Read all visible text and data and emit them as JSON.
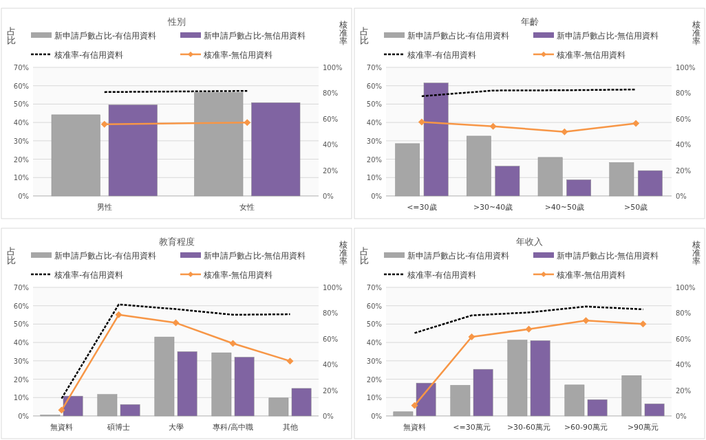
{
  "chart_data": [
    {
      "type": "bar",
      "title": "性別",
      "ylabel": "占比",
      "y2label": "核准率",
      "categories": [
        "男性",
        "女性"
      ],
      "legend": "top",
      "grid": "y",
      "ylim": [
        0,
        70
      ],
      "yticks": [
        {
          "value": 0,
          "label": "0%"
        },
        {
          "value": 10,
          "label": "10%"
        },
        {
          "value": 20,
          "label": "20%"
        },
        {
          "value": 30,
          "label": "30%"
        },
        {
          "value": 40,
          "label": "40%"
        },
        {
          "value": 50,
          "label": "50%"
        },
        {
          "value": 60,
          "label": "60%"
        },
        {
          "value": 70,
          "label": "70%"
        }
      ],
      "y2lim": [
        0,
        100
      ],
      "y2ticks": [
        {
          "value": 0,
          "label": "0%"
        },
        {
          "value": 20,
          "label": "20%"
        },
        {
          "value": 40,
          "label": "40%"
        },
        {
          "value": 60,
          "label": "60%"
        },
        {
          "value": 80,
          "label": "80%"
        },
        {
          "value": 100,
          "label": "100%"
        }
      ],
      "series": [
        {
          "name": "新申請戶數占比-有信用資料",
          "type": "bar",
          "color": "#a6a6a6",
          "values": [
            44.2,
            56.3
          ]
        },
        {
          "name": "新申請戶數占比-無信用資料",
          "type": "bar",
          "color": "#8064a2",
          "values": [
            49.6,
            50.8
          ]
        },
        {
          "name": "核准率-有信用資料",
          "type": "line",
          "axis": "y2",
          "line_style": "dashed",
          "marker": "none",
          "color": "#000000",
          "values": [
            80.8,
            81.7
          ]
        },
        {
          "name": "核准率-無信用資料",
          "type": "line",
          "axis": "y2",
          "line_style": "solid",
          "marker": "diamond",
          "color": "#f79646",
          "values": [
            55.7,
            57.1
          ]
        }
      ]
    },
    {
      "type": "bar",
      "title": "年齡",
      "ylabel": "占比",
      "y2label": "核准率",
      "categories": [
        "<=30歲",
        ">30~40歲",
        ">40~50歲",
        ">50歲"
      ],
      "legend": "top",
      "grid": "y",
      "ylim": [
        0,
        70
      ],
      "yticks": [
        {
          "value": 0,
          "label": "0%"
        },
        {
          "value": 10,
          "label": "10%"
        },
        {
          "value": 20,
          "label": "20%"
        },
        {
          "value": 30,
          "label": "30%"
        },
        {
          "value": 40,
          "label": "40%"
        },
        {
          "value": 50,
          "label": "50%"
        },
        {
          "value": 60,
          "label": "60%"
        },
        {
          "value": 70,
          "label": "70%"
        }
      ],
      "y2lim": [
        0,
        100
      ],
      "y2ticks": [
        {
          "value": 0,
          "label": "0%"
        },
        {
          "value": 20,
          "label": "20%"
        },
        {
          "value": 40,
          "label": "40%"
        },
        {
          "value": 60,
          "label": "60%"
        },
        {
          "value": 80,
          "label": "80%"
        },
        {
          "value": 100,
          "label": "100%"
        }
      ],
      "series": [
        {
          "name": "新申請戶數占比-有信用資料",
          "type": "bar",
          "color": "#a6a6a6",
          "values": [
            28.5,
            32.6,
            21,
            18.2
          ]
        },
        {
          "name": "新申請戶數占比-無信用資料",
          "type": "bar",
          "color": "#8064a2",
          "values": [
            61.5,
            16.2,
            8.8,
            13.8
          ]
        },
        {
          "name": "核准率-有信用資料",
          "type": "line",
          "axis": "y2",
          "line_style": "dashed",
          "marker": "none",
          "color": "#000000",
          "values": [
            77.6,
            82,
            82.2,
            82.8
          ]
        },
        {
          "name": "核准率-無信用資料",
          "type": "line",
          "axis": "y2",
          "line_style": "solid",
          "marker": "diamond",
          "color": "#f79646",
          "values": [
            57.5,
            54.2,
            49.9,
            56.4
          ]
        }
      ]
    },
    {
      "type": "bar",
      "title": "教育程度",
      "ylabel": "占比",
      "y2label": "核准率",
      "categories": [
        "無資料",
        "碩博士",
        "大學",
        "專科/高中職",
        "其他"
      ],
      "legend": "top",
      "grid": "y",
      "ylim": [
        0,
        70
      ],
      "yticks": [
        {
          "value": 0,
          "label": "0%"
        },
        {
          "value": 10,
          "label": "10%"
        },
        {
          "value": 20,
          "label": "20%"
        },
        {
          "value": 30,
          "label": "30%"
        },
        {
          "value": 40,
          "label": "40%"
        },
        {
          "value": 50,
          "label": "50%"
        },
        {
          "value": 60,
          "label": "60%"
        },
        {
          "value": 70,
          "label": "70%"
        }
      ],
      "y2lim": [
        0,
        100
      ],
      "y2ticks": [
        {
          "value": 0,
          "label": "0%"
        },
        {
          "value": 20,
          "label": "20%"
        },
        {
          "value": 40,
          "label": "40%"
        },
        {
          "value": 60,
          "label": "60%"
        },
        {
          "value": 80,
          "label": "80%"
        },
        {
          "value": 100,
          "label": "100%"
        }
      ],
      "series": [
        {
          "name": "新申請戶數占比-有信用資料",
          "type": "bar",
          "color": "#a6a6a6",
          "values": [
            0.5,
            11.7,
            43,
            34.4,
            9.8
          ]
        },
        {
          "name": "新申請戶數占比-無信用資料",
          "type": "bar",
          "color": "#8064a2",
          "values": [
            10.8,
            6.2,
            35,
            32,
            15
          ]
        },
        {
          "name": "核准率-有信用資料",
          "type": "line",
          "axis": "y2",
          "line_style": "dashed",
          "marker": "none",
          "color": "#000000",
          "values": [
            13.6,
            86.7,
            83.1,
            78.7,
            79.1
          ]
        },
        {
          "name": "核准率-無信用資料",
          "type": "line",
          "axis": "y2",
          "line_style": "solid",
          "marker": "diamond",
          "color": "#f79646",
          "values": [
            4.5,
            78.7,
            72.4,
            56.4,
            42.7
          ]
        }
      ]
    },
    {
      "type": "bar",
      "title": "年收入",
      "ylabel": "占比",
      "y2label": "核准率",
      "categories": [
        "無資料",
        "<=30萬元",
        ">30-60萬元",
        ">60-90萬元",
        ">90萬元"
      ],
      "legend": "top",
      "grid": "y",
      "ylim": [
        0,
        70
      ],
      "yticks": [
        {
          "value": 0,
          "label": "0%"
        },
        {
          "value": 10,
          "label": "10%"
        },
        {
          "value": 20,
          "label": "20%"
        },
        {
          "value": 30,
          "label": "30%"
        },
        {
          "value": 40,
          "label": "40%"
        },
        {
          "value": 50,
          "label": "50%"
        },
        {
          "value": 60,
          "label": "60%"
        },
        {
          "value": 70,
          "label": "70%"
        }
      ],
      "y2lim": [
        0,
        100
      ],
      "y2ticks": [
        {
          "value": 0,
          "label": "0%"
        },
        {
          "value": 20,
          "label": "20%"
        },
        {
          "value": 40,
          "label": "40%"
        },
        {
          "value": 60,
          "label": "60%"
        },
        {
          "value": 80,
          "label": "80%"
        },
        {
          "value": 100,
          "label": "100%"
        }
      ],
      "series": [
        {
          "name": "新申請戶數占比-有信用資料",
          "type": "bar",
          "color": "#a6a6a6",
          "values": [
            2.3,
            16.7,
            41.3,
            16.9,
            22
          ]
        },
        {
          "name": "新申請戶數占比-無信用資料",
          "type": "bar",
          "color": "#8064a2",
          "values": [
            17.9,
            25.4,
            41,
            8.9,
            6.6
          ]
        },
        {
          "name": "核准率-有信用資料",
          "type": "line",
          "axis": "y2",
          "line_style": "dashed",
          "marker": "none",
          "color": "#000000",
          "values": [
            64.5,
            78.2,
            80.5,
            85.1,
            82.9
          ]
        },
        {
          "name": "核准率-無信用資料",
          "type": "line",
          "axis": "y2",
          "line_style": "solid",
          "marker": "diamond",
          "color": "#f79646",
          "values": [
            8.2,
            61.5,
            67.5,
            74.2,
            71.5
          ]
        }
      ]
    }
  ]
}
